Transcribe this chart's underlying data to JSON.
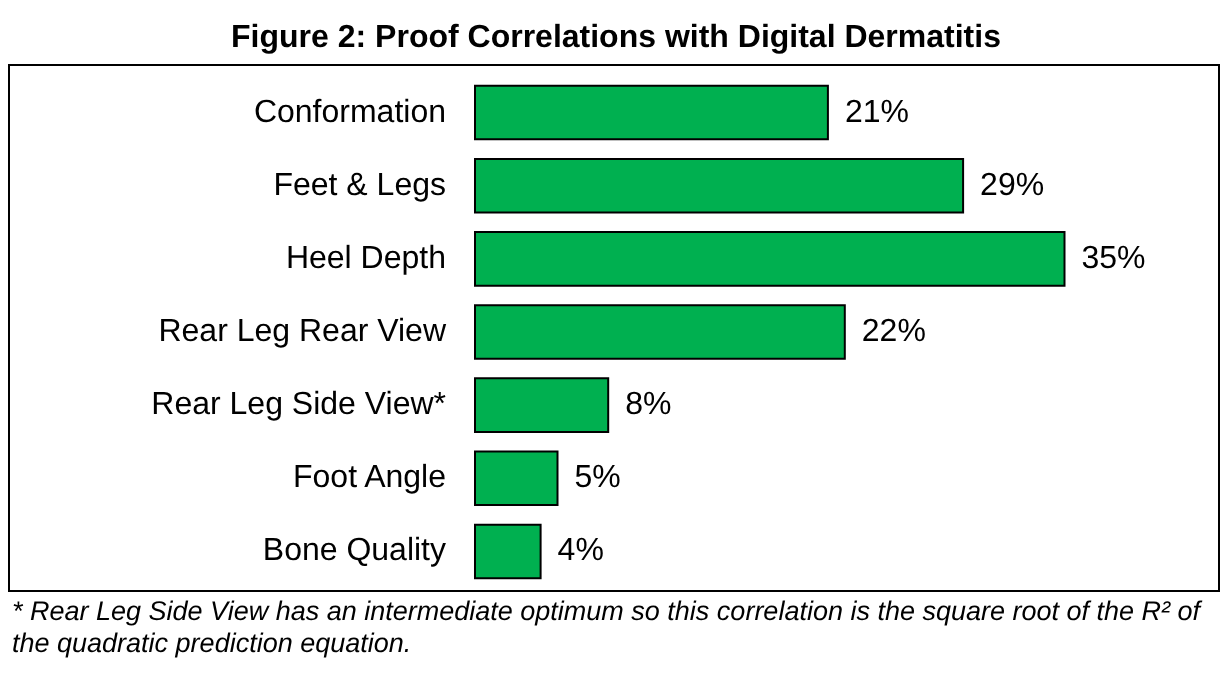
{
  "chart_data": {
    "type": "bar",
    "orientation": "horizontal",
    "title": "Figure 2: Proof Correlations with Digital Dermatitis",
    "categories": [
      "Conformation",
      "Feet & Legs",
      "Heel Depth",
      "Rear Leg Rear View",
      "Rear Leg Side View*",
      "Foot Angle",
      "Bone Quality"
    ],
    "values": [
      21,
      29,
      35,
      22,
      8,
      5,
      4
    ],
    "value_labels": [
      "21%",
      "29%",
      "35%",
      "22%",
      "8%",
      "5%",
      "4%"
    ],
    "color": "#00b050",
    "annotations": [
      "* Rear Leg Side View has an intermediate optimum so this correlation is the square root of the R² of the quadratic prediction equation."
    ]
  }
}
